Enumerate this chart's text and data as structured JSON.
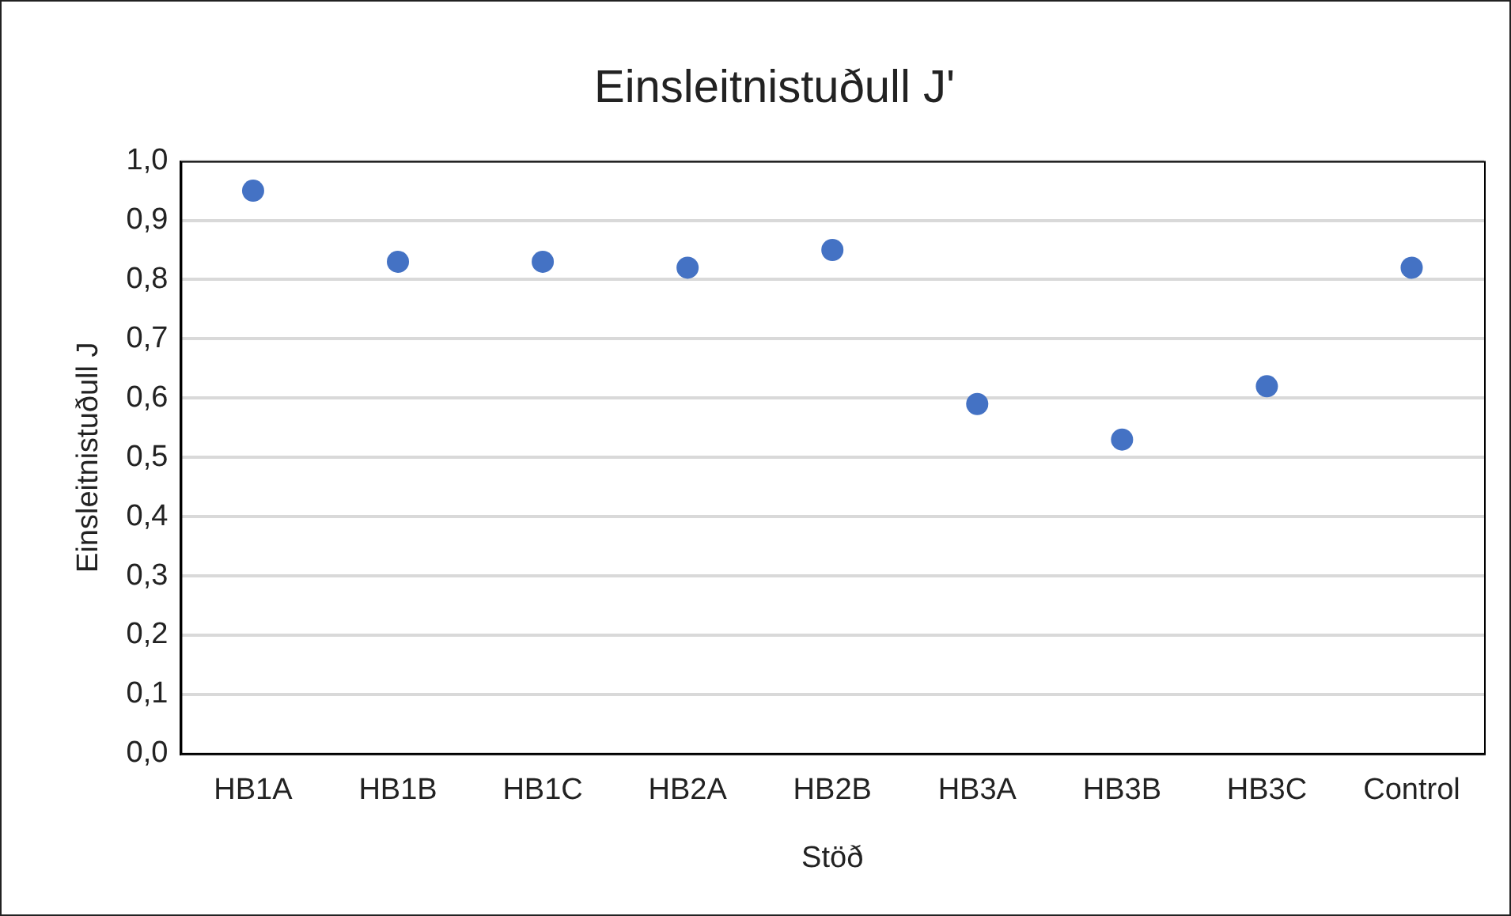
{
  "chart_data": {
    "type": "scatter",
    "title": "Einsleitnistuðull J'",
    "xlabel": "Stöð",
    "ylabel": "Einsleitnistuðull J",
    "categories": [
      "HB1A",
      "HB1B",
      "HB1C",
      "HB2A",
      "HB2B",
      "HB3A",
      "HB3B",
      "HB3C",
      "Control"
    ],
    "series": [
      {
        "color": "#4472c4",
        "values": [
          0.95,
          0.83,
          0.83,
          0.82,
          0.85,
          0.59,
          0.53,
          0.62,
          0.82
        ]
      }
    ],
    "ylim": [
      0,
      1
    ],
    "yticks": [
      {
        "value": 0,
        "label": "0,0"
      },
      {
        "value": 0.1,
        "label": "0,1"
      },
      {
        "value": 0.2,
        "label": "0,2"
      },
      {
        "value": 0.3,
        "label": "0,3"
      },
      {
        "value": 0.4,
        "label": "0,4"
      },
      {
        "value": 0.5,
        "label": "0,5"
      },
      {
        "value": 0.6,
        "label": "0,6"
      },
      {
        "value": 0.7,
        "label": "0,7"
      },
      {
        "value": 0.8,
        "label": "0,8"
      },
      {
        "value": 0.9,
        "label": "0,9"
      },
      {
        "value": 1,
        "label": "1,0"
      }
    ],
    "grid": "y",
    "marker": "circle",
    "legend": false
  }
}
